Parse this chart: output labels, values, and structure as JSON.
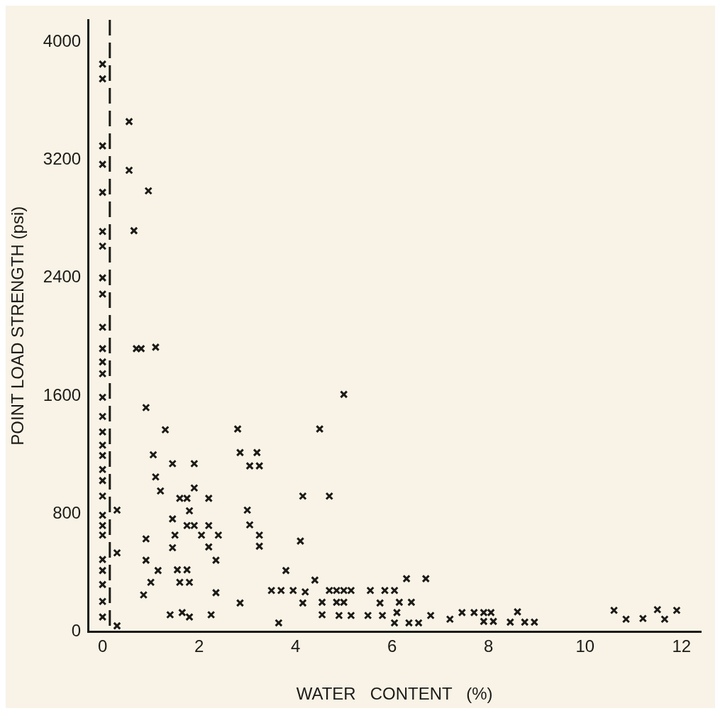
{
  "chart_data": {
    "type": "scatter",
    "xlabel": "WATER   CONTENT   (%)",
    "ylabel": "POINT LOAD STRENGTH (psi)",
    "x": [
      0,
      0,
      0,
      0,
      0,
      0,
      0,
      0,
      0,
      0,
      0,
      0,
      0,
      0,
      0,
      0,
      0,
      0,
      0,
      0,
      0,
      0,
      0,
      0,
      0,
      0,
      0,
      0,
      0,
      0.3,
      0.3,
      0.3,
      0.55,
      0.55,
      0.95,
      0.65,
      0.7,
      0.8,
      1.1,
      0.9,
      1.3,
      1.05,
      1.45,
      1.9,
      1.1,
      1.2,
      1.9,
      1.6,
      1.75,
      2.2,
      1.8,
      1.45,
      1.75,
      1.9,
      2.2,
      0.9,
      1.5,
      2.05,
      2.4,
      1.45,
      2.2,
      3.25,
      3.25,
      3,
      3.05,
      2.8,
      2.85,
      3.2,
      3.05,
      3.25,
      0.9,
      2.35,
      1.15,
      1.55,
      1.75,
      1.0,
      1.6,
      1.8,
      0.85,
      2.35,
      2.85,
      3.5,
      3.7,
      3.95,
      3.8,
      1.4,
      1.65,
      1.8,
      2.25,
      3.65,
      5.0,
      4.5,
      4.15,
      4.7,
      4.1,
      4.4,
      4.2,
      4.15,
      4.55,
      4.7,
      4.85,
      5.0,
      5.15,
      4.85,
      5.0,
      4.55,
      4.9,
      5.15,
      5.5,
      5.8,
      5.55,
      5.85,
      6.05,
      5.75,
      6.15,
      6.4,
      6.1,
      6.05,
      6.35,
      6.55,
      6.3,
      6.7,
      6.8,
      7.2,
      7.45,
      7.7,
      7.9,
      8.05,
      7.9,
      8.1,
      8.6,
      8.45,
      8.75,
      8.95,
      10.6,
      10.85,
      11.2,
      11.5,
      11.65,
      11.9
    ],
    "values": [
      3850,
      3750,
      3295,
      3170,
      2980,
      2715,
      2615,
      2400,
      2290,
      2065,
      1920,
      1830,
      1750,
      1590,
      1460,
      1355,
      1265,
      1195,
      1100,
      1025,
      920,
      790,
      720,
      655,
      490,
      415,
      320,
      205,
      100,
      825,
      535,
      40,
      3460,
      3130,
      2990,
      2720,
      1920,
      1920,
      1930,
      1520,
      1370,
      1200,
      1140,
      1140,
      1050,
      955,
      975,
      905,
      905,
      905,
      820,
      765,
      720,
      720,
      720,
      630,
      655,
      655,
      655,
      570,
      575,
      655,
      580,
      825,
      725,
      1375,
      1215,
      1215,
      1125,
      1125,
      485,
      485,
      415,
      420,
      420,
      335,
      335,
      335,
      250,
      265,
      195,
      280,
      280,
      280,
      415,
      115,
      130,
      100,
      115,
      60,
      1610,
      1375,
      920,
      920,
      615,
      350,
      270,
      195,
      200,
      280,
      280,
      280,
      280,
      200,
      200,
      115,
      110,
      110,
      110,
      110,
      280,
      280,
      280,
      195,
      200,
      200,
      130,
      60,
      60,
      60,
      360,
      360,
      110,
      85,
      130,
      130,
      130,
      130,
      70,
      70,
      135,
      65,
      65,
      65,
      145,
      85,
      90,
      150,
      85,
      145
    ],
    "color": "#1c1a17",
    "marker": "cross",
    "xlim": [
      -0.3,
      12.4
    ],
    "ylim": [
      0,
      4150
    ],
    "xticks": [
      0,
      2,
      4,
      6,
      8,
      10,
      12
    ],
    "yticks": [
      0,
      800,
      1600,
      2400,
      3200,
      4000
    ],
    "grid": false,
    "legend": false,
    "ref_lines": [
      {
        "axis": "x",
        "value": 0.15,
        "line_style": "dashed",
        "color": "#1c1a17"
      }
    ]
  }
}
